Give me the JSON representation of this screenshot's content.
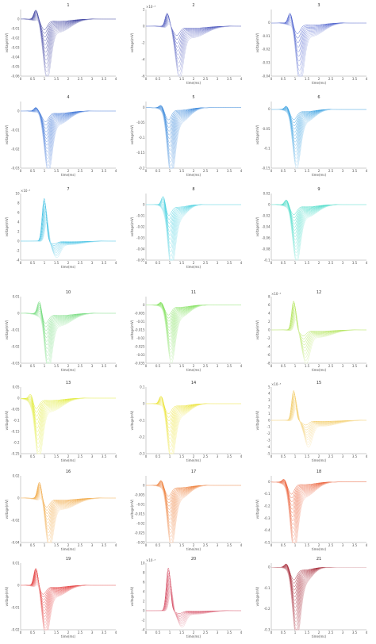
{
  "figure": {
    "xlabel": "time(ms)",
    "ylabel": "voltage(mV)"
  },
  "chart_data": [
    {
      "type": "line",
      "title": "1",
      "xlabel": "",
      "ylabel": "voltage(mV)",
      "color": "#1a1f8f",
      "scale_note": "",
      "xlim": [
        0,
        4
      ],
      "ylim": [
        -0.06,
        0.01
      ],
      "x_ticks": [
        "0",
        "0.5",
        "1",
        "1.5",
        "2",
        "2.5",
        "3",
        "3.5",
        "4"
      ],
      "y_ticks": [
        "0",
        "-0.01",
        "-0.02",
        "-0.03",
        "-0.04",
        "-0.05",
        "-0.06"
      ],
      "shape": {
        "pos": [
          0.7,
          0.01
        ],
        "neg": [
          1.05,
          -0.055,
          0.9
        ],
        "traces": 14
      }
    },
    {
      "type": "line",
      "title": "2",
      "xlabel": "time(ms)",
      "ylabel": "voltage(mV)",
      "color": "#2a37b0",
      "scale_note": "×10⁻³",
      "xlim": [
        0,
        4
      ],
      "ylim": [
        -6,
        2
      ],
      "x_ticks": [
        "0",
        "0.5",
        "1",
        "1.5",
        "2",
        "2.5",
        "3",
        "3.5",
        "4"
      ],
      "y_ticks": [
        "2",
        "0",
        "-2",
        "-4",
        "-6"
      ],
      "shape": {
        "pos": [
          0.95,
          1.6
        ],
        "neg": [
          1.35,
          -5.5,
          1.0
        ],
        "traces": 12
      }
    },
    {
      "type": "line",
      "title": "3",
      "xlabel": "time(ms)",
      "ylabel": "voltage(mV)",
      "color": "#2c44c4",
      "scale_note": "",
      "xlim": [
        0,
        4
      ],
      "ylim": [
        -0.04,
        0.01
      ],
      "x_ticks": [
        "0",
        "0.5",
        "1",
        "1.5",
        "2",
        "2.5",
        "3",
        "3.5",
        "4"
      ],
      "y_ticks": [
        "0",
        "-0.01",
        "-0.02",
        "-0.03",
        "-0.04"
      ],
      "shape": {
        "pos": [
          0.85,
          0.008
        ],
        "neg": [
          1.15,
          -0.04,
          0.9
        ],
        "traces": 12
      }
    },
    {
      "type": "line",
      "title": "4",
      "xlabel": "time(ms)",
      "ylabel": "voltage(mV)",
      "color": "#1f5fd0",
      "scale_note": "",
      "xlim": [
        0,
        4
      ],
      "ylim": [
        -0.03,
        0.005
      ],
      "x_ticks": [
        "0",
        "0.5",
        "1",
        "1.5",
        "2",
        "2.5",
        "3",
        "3.5",
        "4"
      ],
      "y_ticks": [
        "0",
        "-0.01",
        "-0.02",
        "-0.03"
      ],
      "shape": {
        "pos": [
          0.7,
          0.002
        ],
        "neg": [
          1.1,
          -0.028,
          0.8
        ],
        "traces": 16
      }
    },
    {
      "type": "line",
      "title": "5",
      "xlabel": "time(ms)",
      "ylabel": "voltage(mV)",
      "color": "#1f78d6",
      "scale_note": "",
      "xlim": [
        0,
        4
      ],
      "ylim": [
        -0.2,
        0.02
      ],
      "x_ticks": [
        "0",
        "0.5",
        "1",
        "1.5",
        "2",
        "2.5",
        "3",
        "3.5",
        "4"
      ],
      "y_ticks": [
        "0",
        "-0.05",
        "-0.1",
        "-0.15",
        "-0.2"
      ],
      "shape": {
        "pos": [
          0.7,
          0.01
        ],
        "neg": [
          1.0,
          -0.2,
          0.7
        ],
        "traces": 16
      }
    },
    {
      "type": "line",
      "title": "6",
      "xlabel": "time(ms)",
      "ylabel": "voltage(mV)",
      "color": "#1e93dc",
      "scale_note": "",
      "xlim": [
        0,
        4
      ],
      "ylim": [
        -0.15,
        0.02
      ],
      "x_ticks": [
        "0",
        "0.5",
        "1",
        "1.5",
        "2",
        "2.5",
        "3",
        "3.5",
        "4"
      ],
      "y_ticks": [
        "0",
        "-0.05",
        "-0.1",
        "-0.15"
      ],
      "shape": {
        "pos": [
          0.7,
          0.01
        ],
        "neg": [
          1.0,
          -0.13,
          0.7
        ],
        "traces": 16
      }
    },
    {
      "type": "line",
      "title": "7",
      "xlabel": "time(ms)",
      "ylabel": "voltage(mV)",
      "color": "#26b8e0",
      "scale_note": "×10⁻³",
      "xlim": [
        0,
        4
      ],
      "ylim": [
        -4,
        10
      ],
      "x_ticks": [
        "0",
        "0.5",
        "1",
        "1.5",
        "2",
        "2.5",
        "3",
        "3.5",
        "4"
      ],
      "y_ticks": [
        "10",
        "8",
        "6",
        "4",
        "2",
        "0",
        "-2",
        "-4"
      ],
      "shape": {
        "pos": [
          1.05,
          9
        ],
        "neg": [
          1.45,
          -3,
          1.0
        ],
        "traces": 10
      }
    },
    {
      "type": "line",
      "title": "8",
      "xlabel": "time(ms)",
      "ylabel": "voltage(mV)",
      "color": "#2ec9db",
      "scale_note": "",
      "xlim": [
        0,
        4
      ],
      "ylim": [
        -0.05,
        0.01
      ],
      "x_ticks": [
        "0",
        "0.5",
        "1",
        "1.5",
        "2",
        "2.5",
        "3",
        "3.5",
        "4"
      ],
      "y_ticks": [
        "0",
        "-0.01",
        "-0.02",
        "-0.03",
        "-0.04",
        "-0.05"
      ],
      "shape": {
        "pos": [
          0.8,
          0.01
        ],
        "neg": [
          1.0,
          -0.05,
          0.6
        ],
        "traces": 14
      }
    },
    {
      "type": "line",
      "title": "9",
      "xlabel": "",
      "ylabel": "voltage(mV)",
      "color": "#2fd6c0",
      "scale_note": "",
      "xlim": [
        0,
        4
      ],
      "ylim": [
        -0.1,
        0.02
      ],
      "x_ticks": [
        "0",
        "0.5",
        "1",
        "1.5",
        "2",
        "2.5",
        "3",
        "3.5",
        "4"
      ],
      "y_ticks": [
        "0.02",
        "0",
        "-0.02",
        "-0.04",
        "-0.06",
        "-0.08",
        "-0.1"
      ],
      "shape": {
        "pos": [
          0.7,
          0.01
        ],
        "neg": [
          1.0,
          -0.09,
          0.8
        ],
        "traces": 16
      }
    },
    {
      "type": "line",
      "title": "10",
      "xlabel": "time(ms)",
      "ylabel": "voltage(mV)",
      "color": "#5fd66a",
      "scale_note": "",
      "xlim": [
        0,
        4
      ],
      "ylim": [
        -0.03,
        0.01
      ],
      "x_ticks": [
        "0",
        "0.5",
        "1",
        "1.5",
        "2",
        "2.5",
        "3",
        "3.5",
        "4"
      ],
      "y_ticks": [
        "0.01",
        "0",
        "-0.01",
        "-0.02",
        "-0.03"
      ],
      "shape": {
        "pos": [
          0.85,
          0.008
        ],
        "neg": [
          1.1,
          -0.03,
          0.9
        ],
        "traces": 14
      }
    },
    {
      "type": "line",
      "title": "11",
      "xlabel": "time(ms)",
      "ylabel": "voltage(mV)",
      "color": "#6fdc45",
      "scale_note": "",
      "xlim": [
        0,
        4
      ],
      "ylim": [
        -0.035,
        0.005
      ],
      "x_ticks": [
        "0",
        "0.5",
        "1",
        "1.5",
        "2",
        "2.5",
        "3",
        "3.5",
        "4"
      ],
      "y_ticks": [
        "0",
        "-0.005",
        "-0.01",
        "-0.015",
        "-0.02",
        "-0.025",
        "-0.03",
        "-0.035"
      ],
      "shape": {
        "pos": [
          0.7,
          0.002
        ],
        "neg": [
          1.0,
          -0.03,
          0.7
        ],
        "traces": 16
      }
    },
    {
      "type": "line",
      "title": "12",
      "xlabel": "time(ms)",
      "ylabel": "voltage(mV)",
      "color": "#a3df3a",
      "scale_note": "×10⁻³",
      "xlim": [
        0,
        4
      ],
      "ylim": [
        -8,
        8
      ],
      "x_ticks": [
        "0",
        "0.5",
        "1",
        "1.5",
        "2",
        "2.5",
        "3",
        "3.5",
        "4"
      ],
      "y_ticks": [
        "8",
        "6",
        "4",
        "2",
        "0",
        "-2",
        "-4",
        "-6",
        "-8"
      ],
      "shape": {
        "pos": [
          1.0,
          7
        ],
        "neg": [
          1.4,
          -7,
          1.0
        ],
        "traces": 10
      }
    },
    {
      "type": "line",
      "title": "13",
      "xlabel": "time(ms)",
      "ylabel": "voltage(mV)",
      "color": "#dce81c",
      "scale_note": "",
      "xlim": [
        0,
        4
      ],
      "ylim": [
        -0.25,
        0.05
      ],
      "x_ticks": [
        "0",
        "0.5",
        "1",
        "1.5",
        "2",
        "2.5",
        "3",
        "3.5",
        "4"
      ],
      "y_ticks": [
        "0.05",
        "0",
        "-0.05",
        "-0.1",
        "-0.15",
        "-0.2",
        "-0.25"
      ],
      "shape": {
        "pos": [
          0.5,
          0.03
        ],
        "neg": [
          0.7,
          -0.24,
          0.9
        ],
        "traces": 14
      }
    },
    {
      "type": "line",
      "title": "14",
      "xlabel": "time(ms)",
      "ylabel": "voltage(mV)",
      "color": "#e8de14",
      "scale_note": "",
      "xlim": [
        0,
        4
      ],
      "ylim": [
        -0.3,
        0.1
      ],
      "x_ticks": [
        "0",
        "0.5",
        "1",
        "1.5",
        "2",
        "2.5",
        "3",
        "3.5",
        "4"
      ],
      "y_ticks": [
        "0.1",
        "0",
        "-0.1",
        "-0.2",
        "-0.3"
      ],
      "shape": {
        "pos": [
          0.7,
          0.05
        ],
        "neg": [
          1.0,
          -0.3,
          0.7
        ],
        "traces": 14
      }
    },
    {
      "type": "line",
      "title": "15",
      "xlabel": "time(ms)",
      "ylabel": "voltage(mV)",
      "color": "#f0c24a",
      "scale_note": "×10⁻³",
      "xlim": [
        0,
        4
      ],
      "ylim": [
        -5,
        5
      ],
      "x_ticks": [
        "0",
        "0.5",
        "1",
        "1.5",
        "2",
        "2.5",
        "3",
        "3.5",
        "4"
      ],
      "y_ticks": [
        "5",
        "4",
        "3",
        "2",
        "1",
        "0",
        "-1",
        "-2",
        "-3",
        "-4",
        "-5"
      ],
      "shape": {
        "pos": [
          1.0,
          4.5
        ],
        "neg": [
          1.5,
          -3.5,
          1.1
        ],
        "traces": 10
      }
    },
    {
      "type": "line",
      "title": "16",
      "xlabel": "time(ms)",
      "ylabel": "voltage(mV)",
      "color": "#ef9d2c",
      "scale_note": "",
      "xlim": [
        0,
        4
      ],
      "ylim": [
        -0.04,
        0.02
      ],
      "x_ticks": [
        "0",
        "0.5",
        "1",
        "1.5",
        "2",
        "2.5",
        "3",
        "3.5",
        "4"
      ],
      "y_ticks": [
        "0.02",
        "0",
        "-0.02",
        "-0.04"
      ],
      "shape": {
        "pos": [
          0.85,
          0.015
        ],
        "neg": [
          1.15,
          -0.04,
          1.0
        ],
        "traces": 14
      }
    },
    {
      "type": "line",
      "title": "17",
      "xlabel": "time(ms)",
      "ylabel": "voltage(mV)",
      "color": "#ea6a1a",
      "scale_note": "",
      "xlim": [
        0,
        4
      ],
      "ylim": [
        -0.03,
        0.005
      ],
      "x_ticks": [
        "0",
        "0.5",
        "1",
        "1.5",
        "2",
        "2.5",
        "3",
        "3.5",
        "4"
      ],
      "y_ticks": [
        "0",
        "-0.005",
        "-0.01",
        "-0.015",
        "-0.02",
        "-0.025",
        "-0.03"
      ],
      "shape": {
        "pos": [
          0.7,
          0.003
        ],
        "neg": [
          1.0,
          -0.028,
          0.7
        ],
        "traces": 16
      }
    },
    {
      "type": "line",
      "title": "18",
      "xlabel": "time(ms)",
      "ylabel": "voltage(mV)",
      "color": "#e8491c",
      "scale_note": "",
      "xlim": [
        0,
        4
      ],
      "ylim": [
        -0.5,
        0.05
      ],
      "x_ticks": [
        "0",
        "0.5",
        "1",
        "1.5",
        "2",
        "2.5",
        "3",
        "3.5",
        "4"
      ],
      "y_ticks": [
        "0",
        "-0.1",
        "-0.2",
        "-0.3",
        "-0.4",
        "-0.5"
      ],
      "shape": {
        "pos": [
          0.6,
          0.03
        ],
        "neg": [
          0.9,
          -0.5,
          0.8
        ],
        "traces": 16
      }
    },
    {
      "type": "line",
      "title": "19",
      "xlabel": "time(ms)",
      "ylabel": "voltage(mV)",
      "color": "#e02424",
      "scale_note": "",
      "xlim": [
        0,
        4
      ],
      "ylim": [
        -0.02,
        0.01
      ],
      "x_ticks": [
        "0",
        "0.5",
        "1",
        "1.5",
        "2",
        "2.5",
        "3",
        "3.5",
        "4"
      ],
      "y_ticks": [
        "0.01",
        "0",
        "-0.01",
        "-0.02"
      ],
      "shape": {
        "pos": [
          0.7,
          0.008
        ],
        "neg": [
          1.0,
          -0.02,
          0.8
        ],
        "traces": 16
      }
    },
    {
      "type": "line",
      "title": "20",
      "xlabel": "time(ms)",
      "ylabel": "voltage(mV)",
      "color": "#d0354f",
      "scale_note": "×10⁻³",
      "xlim": [
        0,
        4
      ],
      "ylim": [
        -4,
        10
      ],
      "x_ticks": [
        "0",
        "0.5",
        "1",
        "1.5",
        "2",
        "2.5",
        "3",
        "3.5",
        "4"
      ],
      "y_ticks": [
        "10",
        "8",
        "6",
        "4",
        "2",
        "0",
        "-2",
        "-4"
      ],
      "shape": {
        "pos": [
          1.0,
          9
        ],
        "neg": [
          1.45,
          -3,
          1.0
        ],
        "traces": 10
      }
    },
    {
      "type": "line",
      "title": "21",
      "xlabel": "time(ms)",
      "ylabel": "voltage(mV)",
      "color": "#9b1020",
      "scale_note": "",
      "xlim": [
        0,
        4
      ],
      "ylim": [
        -0.3,
        0.02
      ],
      "x_ticks": [
        "0",
        "0.5",
        "1",
        "1.5",
        "2",
        "2.5",
        "3",
        "3.5",
        "4"
      ],
      "y_ticks": [
        "0",
        "-0.1",
        "-0.2",
        "-0.3"
      ],
      "shape": {
        "pos": [
          0.7,
          0.02
        ],
        "neg": [
          1.0,
          -0.3,
          0.6
        ],
        "traces": 18
      }
    }
  ]
}
